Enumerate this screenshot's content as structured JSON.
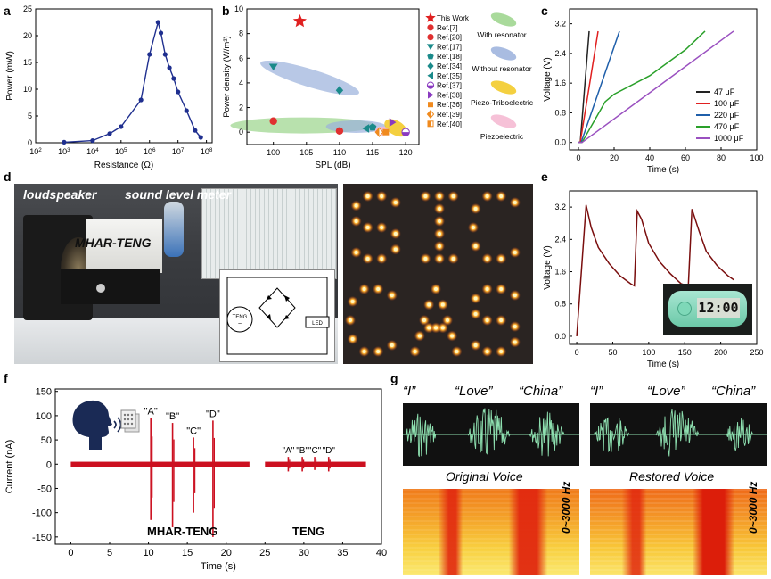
{
  "figure": {
    "panels": {
      "a": "a",
      "b": "b",
      "c": "c",
      "d": "d",
      "e": "e",
      "f": "f",
      "g": "g"
    }
  },
  "colors": {
    "navy": "#1f2f8f",
    "star": "#e02020",
    "green_ellipse": "#9ad48a",
    "blue_ellipse": "#9ab0dc",
    "yellow_ellipse": "#f2c81e",
    "pink_ellipse": "#f4b6d0",
    "teal": "#1a8a8a",
    "orange": "#f08a1e",
    "purple": "#8a3ac0",
    "trace_red": "#cc1020",
    "trace_darkred": "#7a0e0e",
    "spectro_green": "#8ee0b0"
  },
  "chart_data": [
    {
      "id": "a",
      "type": "line",
      "xlabel": "Resistance (Ω)",
      "ylabel": "Power (mW)",
      "xscale": "log",
      "xticks": [
        "10^2",
        "10^3",
        "10^4",
        "10^5",
        "10^6",
        "10^7",
        "10^8"
      ],
      "xlim_log": [
        2,
        8.2
      ],
      "ylim": [
        0,
        25
      ],
      "yticks": [
        "0",
        "5",
        "10",
        "15",
        "20",
        "25"
      ],
      "points_x_log": [
        3,
        4,
        4.6,
        5,
        5.7,
        6.0,
        6.3,
        6.4,
        6.55,
        6.7,
        6.85,
        7.0,
        7.3,
        7.6,
        7.8
      ],
      "points_y": [
        0.1,
        0.4,
        1.7,
        3.0,
        8.0,
        16.5,
        22.5,
        20.5,
        16.5,
        14.0,
        12.0,
        9.5,
        6.0,
        2.3,
        1.0
      ]
    },
    {
      "id": "b",
      "type": "scatter",
      "xlabel": "SPL (dB)",
      "ylabel": "Power density (W/m²)",
      "xlim": [
        96,
        122
      ],
      "ylim": [
        -1,
        10
      ],
      "xticks": [
        "100",
        "105",
        "110",
        "115",
        "120"
      ],
      "yticks": [
        "0",
        "2",
        "4",
        "6",
        "8",
        "10"
      ],
      "legend": {
        "markers": [
          "This Work",
          "Ref.[7]",
          "Ref.[20]",
          "Ref.[17]",
          "Ref.[18]",
          "Ref.[34]",
          "Ref.[35]",
          "Ref.[37]",
          "Ref.[38]",
          "Ref.[36]",
          "Ref.[39]",
          "Ref.[40]"
        ],
        "regions": [
          "With resonator",
          "Without resonator",
          "Piezo-Triboelectric",
          "Piezoelectric"
        ]
      },
      "points": [
        {
          "label": "This Work",
          "x": 104,
          "y": 9.0,
          "shape": "star"
        },
        {
          "label": "Ref.[7]",
          "x": 100,
          "y": 0.9,
          "shape": "circle"
        },
        {
          "label": "Ref.[20]",
          "x": 110,
          "y": 0.1,
          "shape": "circle"
        },
        {
          "label": "Ref.[17]",
          "x": 100,
          "y": 5.3,
          "shape": "tri-down"
        },
        {
          "label": "Ref.[34]",
          "x": 110,
          "y": 3.4,
          "shape": "diamond"
        },
        {
          "label": "Ref.[35]",
          "x": 114,
          "y": 0.3,
          "shape": "tri-left"
        },
        {
          "label": "Ref.[37]",
          "x": 120,
          "y": 0.0,
          "shape": "half-circle"
        },
        {
          "label": "Ref.[38]",
          "x": 118,
          "y": 0.8,
          "shape": "tri-right"
        },
        {
          "label": "Ref.[36]",
          "x": 117,
          "y": 0.0,
          "shape": "square"
        },
        {
          "label": "Ref.[39]",
          "x": 116,
          "y": 0.0,
          "shape": "half-diamond"
        },
        {
          "label": "Ref.[18]",
          "x": 115,
          "y": 0.4,
          "shape": "pentagon"
        }
      ]
    },
    {
      "id": "c",
      "type": "line",
      "xlabel": "Time (s)",
      "ylabel": "Voltage (V)",
      "xlim": [
        -5,
        100
      ],
      "ylim": [
        -0.2,
        3.6
      ],
      "xticks": [
        "0",
        "20",
        "40",
        "60",
        "80",
        "100"
      ],
      "yticks": [
        "0.0",
        "0.8",
        "1.6",
        "2.4",
        "3.2"
      ],
      "series": [
        {
          "name": "47 μF",
          "color": "#222222",
          "x": [
            0,
            1,
            6
          ],
          "y": [
            0,
            0,
            3.0
          ]
        },
        {
          "name": "100 μF",
          "color": "#e02020",
          "x": [
            0,
            1,
            11
          ],
          "y": [
            0,
            0,
            3.0
          ]
        },
        {
          "name": "220 μF",
          "color": "#1f5faa",
          "x": [
            0,
            1.5,
            23
          ],
          "y": [
            0,
            0,
            3.0
          ]
        },
        {
          "name": "470 μF",
          "color": "#2aa02a",
          "x": [
            0,
            2,
            15,
            20,
            40,
            60,
            71
          ],
          "y": [
            0,
            0,
            1.1,
            1.3,
            1.8,
            2.5,
            3.0
          ]
        },
        {
          "name": "1000 μF",
          "color": "#9a50c0",
          "x": [
            0,
            2,
            87
          ],
          "y": [
            0,
            0,
            3.0
          ]
        }
      ]
    },
    {
      "id": "e",
      "type": "line",
      "xlabel": "Time (s)",
      "ylabel": "Voltage (V)",
      "xlim": [
        -10,
        250
      ],
      "ylim": [
        -0.2,
        3.6
      ],
      "xticks": [
        "0",
        "50",
        "100",
        "150",
        "200",
        "250"
      ],
      "yticks": [
        "0.0",
        "0.8",
        "1.6",
        "2.4",
        "3.2"
      ],
      "series": [
        {
          "name": "voltage",
          "color": "#7a0e0e",
          "x": [
            0,
            13,
            20,
            30,
            45,
            60,
            75,
            80,
            84,
            90,
            100,
            115,
            130,
            145,
            155,
            160,
            170,
            180,
            195,
            210,
            218
          ],
          "y": [
            0,
            3.25,
            2.7,
            2.2,
            1.8,
            1.5,
            1.3,
            1.25,
            3.1,
            2.9,
            2.3,
            1.85,
            1.55,
            1.3,
            1.25,
            3.15,
            2.6,
            2.1,
            1.75,
            1.5,
            1.4
          ]
        }
      ]
    },
    {
      "id": "f",
      "type": "line",
      "xlabel": "Time (s)",
      "ylabel": "Current (nA)",
      "xlim": [
        -2,
        40
      ],
      "ylim": [
        -165,
        155
      ],
      "xticks": [
        "0",
        "5",
        "10",
        "15",
        "20",
        "25",
        "30",
        "35",
        "40"
      ],
      "yticks": [
        "-150",
        "-100",
        "-50",
        "0",
        "50",
        "100",
        "150"
      ],
      "annotations": [
        "\"A\"",
        "\"B\"",
        "\"C\"",
        "\"D\"",
        "MHAR-TENG",
        "TENG",
        "\"A\"",
        "\"B\"",
        "\"C\"",
        "\"D\""
      ],
      "spikes": [
        {
          "x": 10.3,
          "top": 95,
          "bottom": -115
        },
        {
          "x": 13.1,
          "top": 85,
          "bottom": -130
        },
        {
          "x": 15.8,
          "top": 55,
          "bottom": -100
        },
        {
          "x": 18.3,
          "top": 90,
          "bottom": -150
        },
        {
          "x": 28.0,
          "top": 15,
          "bottom": -15
        },
        {
          "x": 29.8,
          "top": 15,
          "bottom": -15
        },
        {
          "x": 31.4,
          "top": 15,
          "bottom": -12
        },
        {
          "x": 33.2,
          "top": 15,
          "bottom": -15
        }
      ]
    }
  ],
  "panel_d": {
    "labels": [
      "loudspeaker",
      "sound level meter",
      "MHAR-TENG"
    ],
    "circuit": {
      "teng": "TENG",
      "led": "LED"
    },
    "led_text": [
      "S",
      "I",
      "C",
      "C",
      "A",
      "S"
    ]
  },
  "panel_e": {
    "clock_display": "12:00"
  },
  "panel_g": {
    "words_left": [
      "“I”",
      "“Love”",
      "“China”"
    ],
    "words_right": [
      "“I”",
      "“Love”",
      "“China”"
    ],
    "caption_left": "Original Voice",
    "caption_right": "Restored Voice",
    "freq_label": "0~3000 Hz"
  }
}
